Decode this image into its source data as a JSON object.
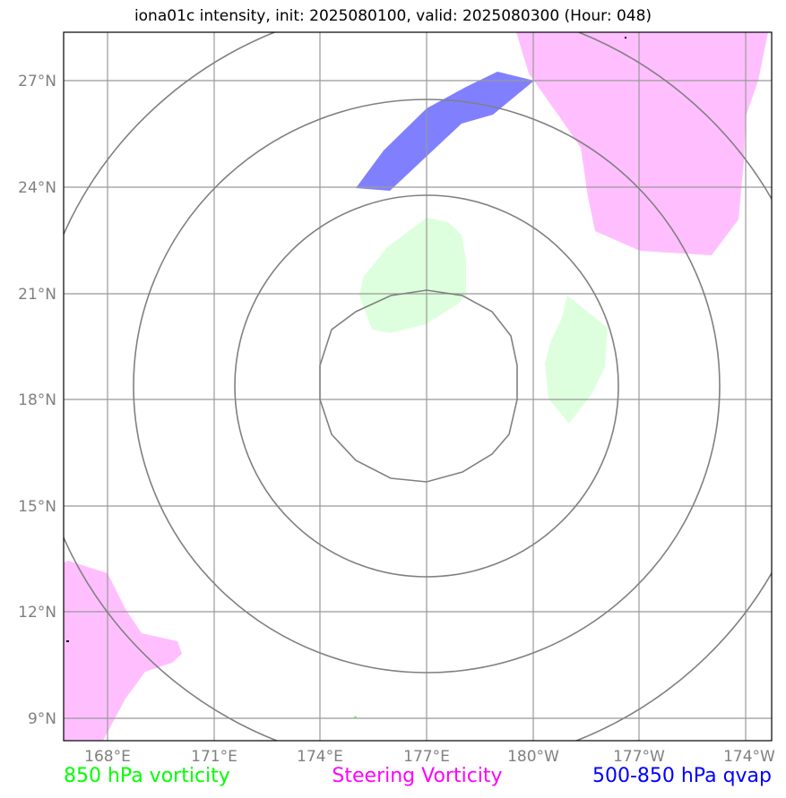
{
  "title": "iona01c intensity, init: 2025080100, valid: 2025080300 (Hour: 048)",
  "colors": {
    "vorticity_850": "#00ff00",
    "steering_vorticity": "#ff00ff",
    "qvap": "#0000ff",
    "vorticity_fill": "#ddffdd",
    "steering_fill": "#ffbfff",
    "qvap_fill": "#8080ff",
    "grid": "#999999",
    "contour": "#808080",
    "axis_label": "#808080"
  },
  "axes": {
    "lat_labels": [
      "27°N",
      "24°N",
      "21°N",
      "18°N",
      "15°N",
      "12°N",
      "9°N"
    ],
    "lon_labels": [
      "168°E",
      "171°E",
      "174°E",
      "177°E",
      "180°W",
      "177°W",
      "174°W"
    ]
  },
  "legend": {
    "left": "850 hPa vorticity",
    "center": "Steering Vorticity",
    "right": "500-850 hPa qvap"
  }
}
